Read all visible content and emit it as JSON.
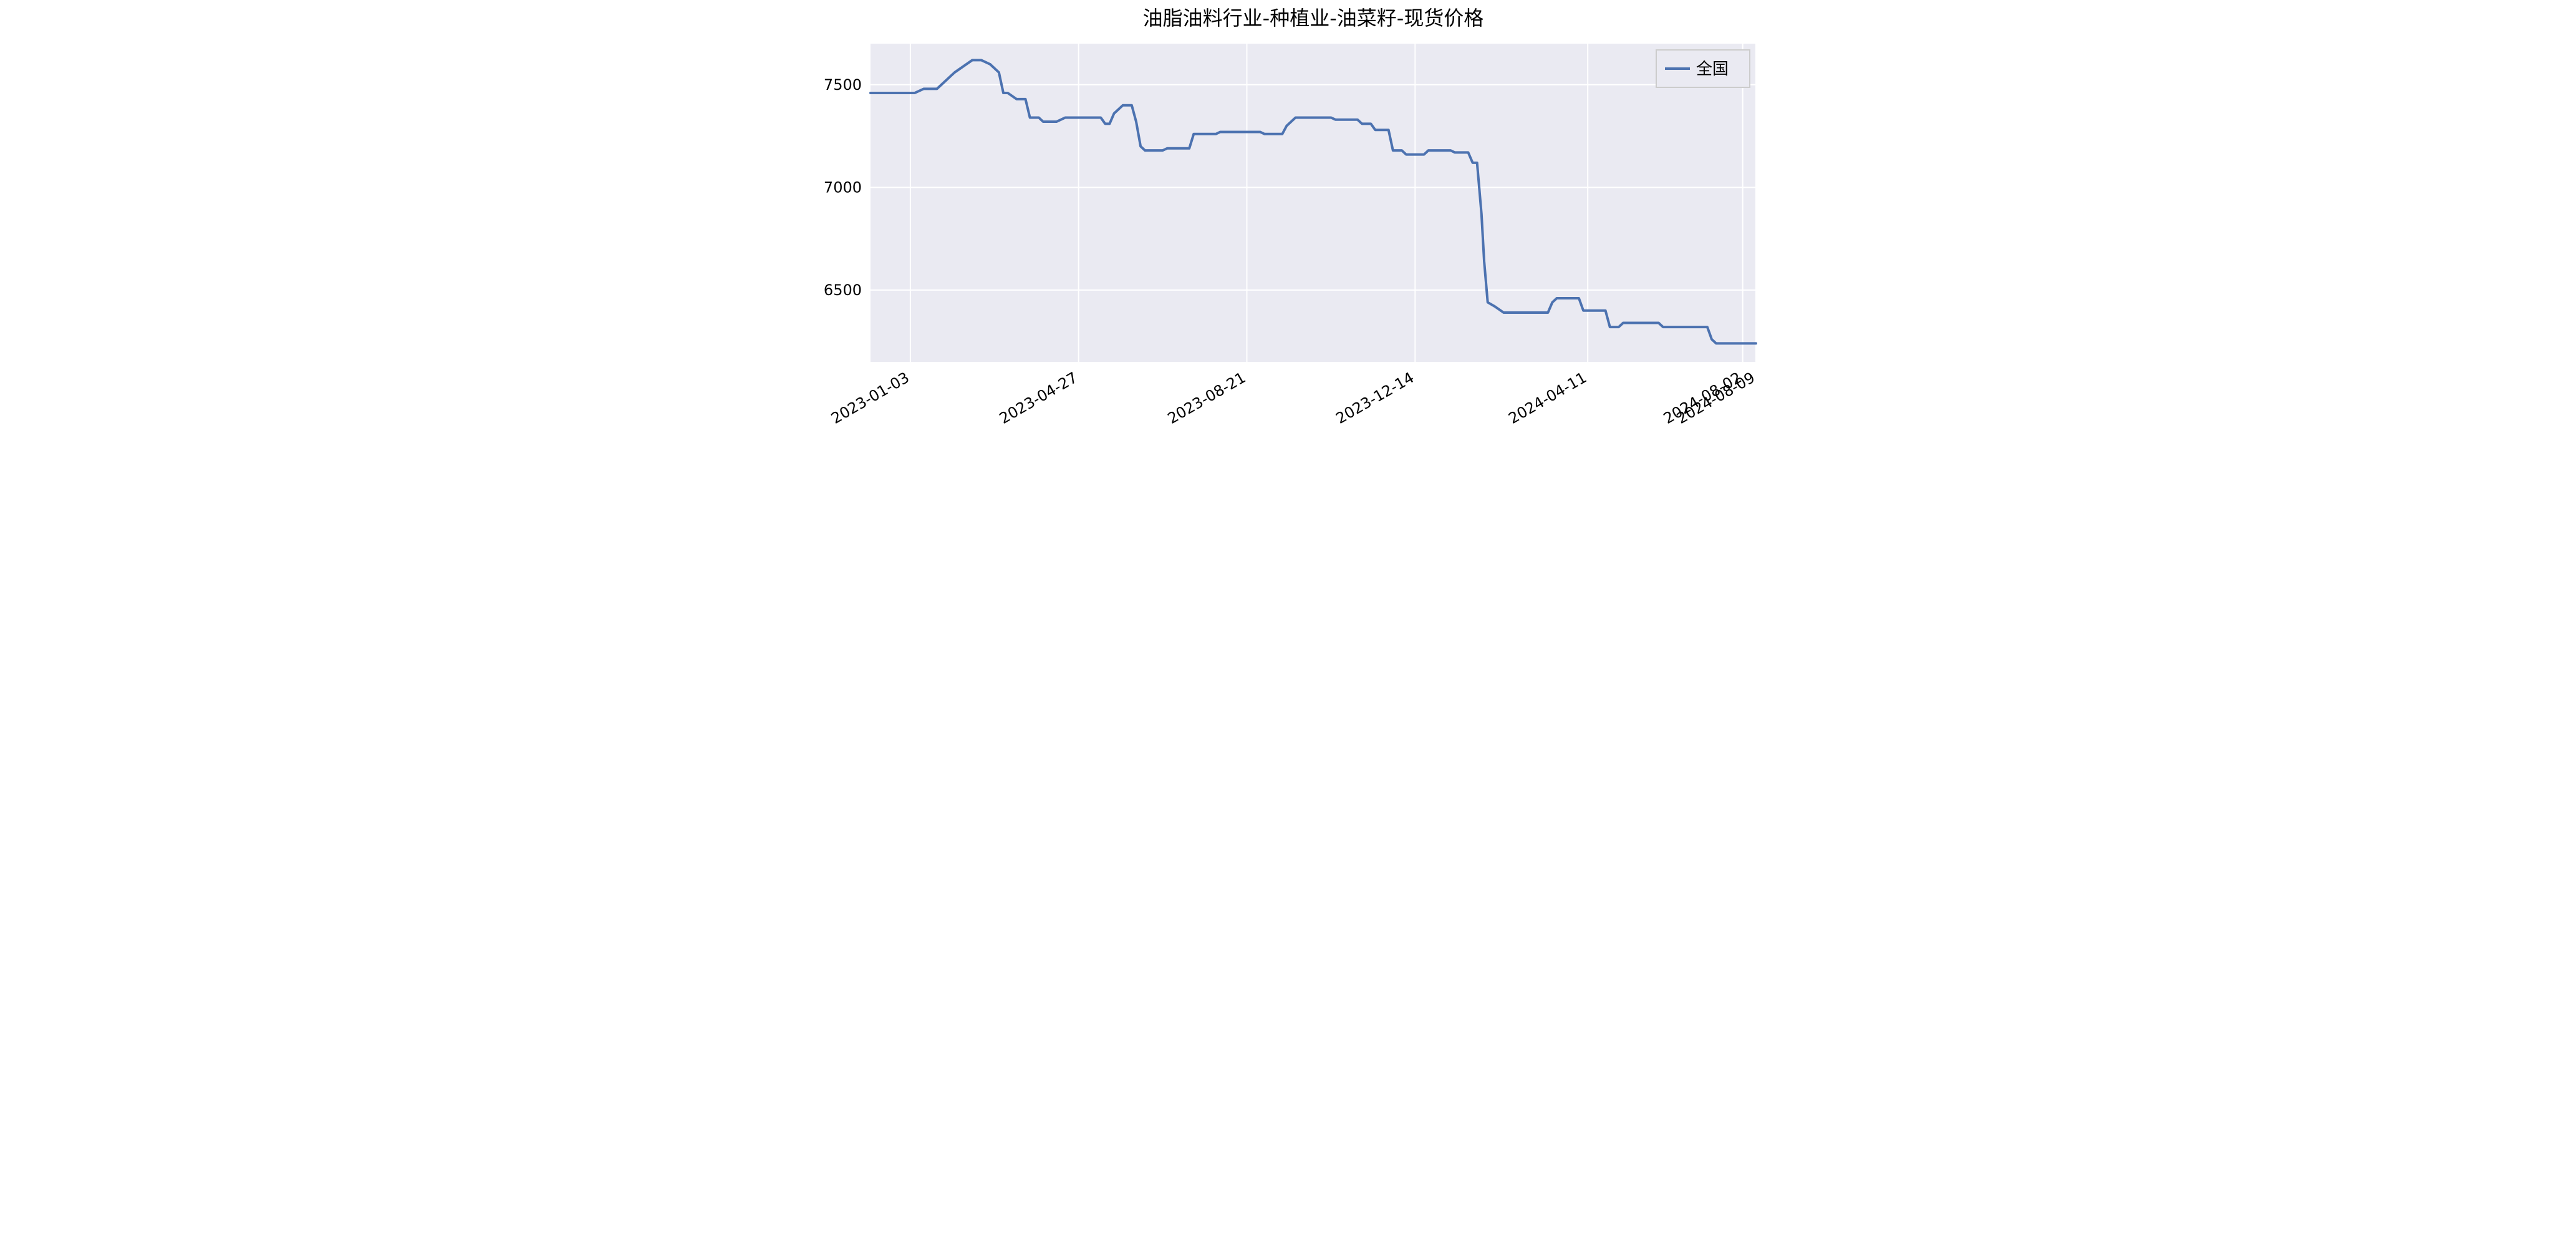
{
  "chart": {
    "type": "line",
    "title": "油脂油料行业-种植业-油菜籽-现货价格",
    "title_fontsize": 32,
    "background_color": "#ffffff",
    "plot_background_color": "#eaeaf2",
    "grid_color": "#ffffff",
    "line_color": "#4c72b0",
    "line_width": 4,
    "tick_fontsize": 24,
    "x_tick_rotation": 30,
    "ylim": [
      6150,
      7700
    ],
    "yticks": [
      6500,
      7000,
      7500
    ],
    "x_categories": [
      "2023-01-03",
      "2023-04-27",
      "2023-08-21",
      "2023-12-14",
      "2024-04-11",
      "2024-08-02",
      "2024-08-09"
    ],
    "x_category_positions": [
      0.045,
      0.235,
      0.425,
      0.615,
      0.81,
      0.985,
      1.0
    ],
    "series": {
      "name": "全国",
      "points": [
        [
          0.0,
          7460
        ],
        [
          0.05,
          7460
        ],
        [
          0.06,
          7480
        ],
        [
          0.075,
          7480
        ],
        [
          0.085,
          7520
        ],
        [
          0.095,
          7560
        ],
        [
          0.105,
          7590
        ],
        [
          0.115,
          7620
        ],
        [
          0.125,
          7620
        ],
        [
          0.135,
          7600
        ],
        [
          0.145,
          7560
        ],
        [
          0.15,
          7460
        ],
        [
          0.155,
          7460
        ],
        [
          0.165,
          7430
        ],
        [
          0.175,
          7430
        ],
        [
          0.18,
          7340
        ],
        [
          0.19,
          7340
        ],
        [
          0.195,
          7320
        ],
        [
          0.21,
          7320
        ],
        [
          0.22,
          7340
        ],
        [
          0.26,
          7340
        ],
        [
          0.265,
          7310
        ],
        [
          0.27,
          7310
        ],
        [
          0.275,
          7360
        ],
        [
          0.285,
          7400
        ],
        [
          0.295,
          7400
        ],
        [
          0.3,
          7320
        ],
        [
          0.305,
          7200
        ],
        [
          0.31,
          7180
        ],
        [
          0.33,
          7180
        ],
        [
          0.335,
          7190
        ],
        [
          0.36,
          7190
        ],
        [
          0.365,
          7260
        ],
        [
          0.39,
          7260
        ],
        [
          0.395,
          7270
        ],
        [
          0.44,
          7270
        ],
        [
          0.445,
          7260
        ],
        [
          0.465,
          7260
        ],
        [
          0.47,
          7300
        ],
        [
          0.48,
          7340
        ],
        [
          0.52,
          7340
        ],
        [
          0.525,
          7330
        ],
        [
          0.55,
          7330
        ],
        [
          0.555,
          7310
        ],
        [
          0.565,
          7310
        ],
        [
          0.57,
          7280
        ],
        [
          0.585,
          7280
        ],
        [
          0.59,
          7180
        ],
        [
          0.6,
          7180
        ],
        [
          0.605,
          7160
        ],
        [
          0.625,
          7160
        ],
        [
          0.63,
          7180
        ],
        [
          0.655,
          7180
        ],
        [
          0.66,
          7170
        ],
        [
          0.675,
          7170
        ],
        [
          0.68,
          7120
        ],
        [
          0.685,
          7120
        ],
        [
          0.69,
          6870
        ],
        [
          0.693,
          6640
        ],
        [
          0.697,
          6440
        ],
        [
          0.705,
          6420
        ],
        [
          0.715,
          6390
        ],
        [
          0.765,
          6390
        ],
        [
          0.77,
          6440
        ],
        [
          0.775,
          6460
        ],
        [
          0.8,
          6460
        ],
        [
          0.805,
          6400
        ],
        [
          0.83,
          6400
        ],
        [
          0.835,
          6320
        ],
        [
          0.845,
          6320
        ],
        [
          0.85,
          6340
        ],
        [
          0.89,
          6340
        ],
        [
          0.895,
          6320
        ],
        [
          0.945,
          6320
        ],
        [
          0.95,
          6260
        ],
        [
          0.955,
          6240
        ],
        [
          1.0,
          6240
        ]
      ]
    },
    "legend": {
      "position": "top-right",
      "items": [
        "全国"
      ]
    }
  }
}
